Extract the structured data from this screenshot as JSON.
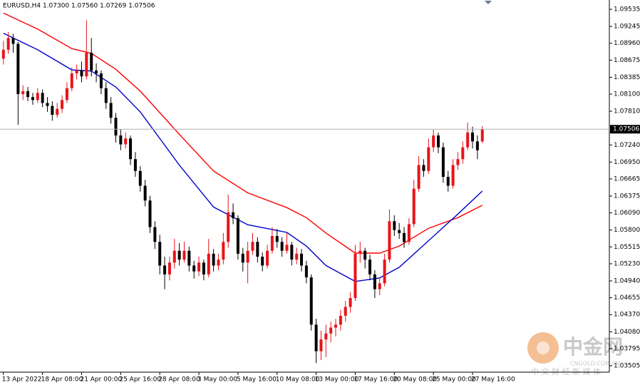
{
  "chart_data": {
    "type": "candlestick",
    "title": "EURUSD,H4  1.07300 1.07560 1.07269 1.07506",
    "up_color": "#e8141a",
    "down_color": "#000000",
    "grid": false,
    "xlim": [
      -0.7,
      124
    ],
    "ylim": [
      1.03396,
      1.09692
    ],
    "yticks": [
      1.09535,
      1.09245,
      {
        "value": 1.0896,
        "label": "1.08960"
      },
      1.08675,
      1.08385,
      {
        "value": 1.081,
        "label": "1.08100"
      },
      {
        "value": 1.0781,
        "label": "1.07810"
      },
      {
        "value": 1.0724,
        "label": "1.07240"
      },
      {
        "value": 1.0695,
        "label": "1.06950"
      },
      1.06665,
      1.06375,
      {
        "value": 1.0609,
        "label": "1.06090"
      },
      {
        "value": 1.058,
        "label": "1.05800"
      },
      1.05515,
      {
        "value": 1.0523,
        "label": "1.05230"
      },
      {
        "value": 1.0494,
        "label": "1.04940"
      },
      1.04655,
      {
        "value": 1.0437,
        "label": "1.04370"
      },
      {
        "value": 1.0408,
        "label": "1.04080"
      },
      1.03795,
      1.03505
    ],
    "xticks": [
      {
        "value": 0,
        "label": "13 Apr 2022"
      },
      {
        "value": 8,
        "label": "18 Apr 08:00"
      },
      {
        "value": 16,
        "label": "21 Apr 00:00"
      },
      {
        "value": 24,
        "label": "25 Apr 16:00"
      },
      {
        "value": 32,
        "label": "28 Apr 08:00"
      },
      {
        "value": 40,
        "label": "3 May 00:00"
      },
      {
        "value": 48,
        "label": "5 May 16:00"
      },
      {
        "value": 56,
        "label": "10 May 08:00"
      },
      {
        "value": 64,
        "label": "13 May 00:00"
      },
      {
        "value": 72,
        "label": "17 May 16:00"
      },
      {
        "value": 80,
        "label": "20 May 08:00"
      },
      {
        "value": 88,
        "label": "25 May 00:00"
      },
      {
        "value": 96,
        "label": "27 May 16:00"
      }
    ],
    "last_price": 1.07506,
    "ohlc": [
      [
        1.087,
        1.09,
        1.086,
        1.0885
      ],
      [
        1.0885,
        1.0915,
        1.0878,
        1.0905
      ],
      [
        1.0905,
        1.0912,
        1.088,
        1.0895
      ],
      [
        1.0895,
        1.0898,
        1.0758,
        1.081
      ],
      [
        1.081,
        1.0825,
        1.08,
        1.0815
      ],
      [
        1.0815,
        1.0822,
        1.0798,
        1.0805
      ],
      [
        1.0805,
        1.0812,
        1.0792,
        1.08
      ],
      [
        1.08,
        1.082,
        1.0795,
        1.0812
      ],
      [
        1.0812,
        1.0818,
        1.0788,
        1.0795
      ],
      [
        1.0795,
        1.0805,
        1.078,
        1.079
      ],
      [
        1.079,
        1.0798,
        1.0765,
        1.0775
      ],
      [
        1.0775,
        1.0795,
        1.077,
        1.0785
      ],
      [
        1.0785,
        1.0808,
        1.0778,
        1.08
      ],
      [
        1.08,
        1.083,
        1.0795,
        1.082
      ],
      [
        1.082,
        1.0855,
        1.0815,
        1.0845
      ],
      [
        1.0845,
        1.086,
        1.0835,
        1.085
      ],
      [
        1.085,
        1.0865,
        1.083,
        1.084
      ],
      [
        1.084,
        1.0935,
        1.0835,
        1.088
      ],
      [
        1.088,
        1.0905,
        1.084,
        1.085
      ],
      [
        1.085,
        1.0862,
        1.083,
        1.0845
      ],
      [
        1.0845,
        1.085,
        1.081,
        1.082
      ],
      [
        1.082,
        1.083,
        1.0785,
        1.0795
      ],
      [
        1.0795,
        1.0805,
        1.076,
        1.077
      ],
      [
        1.077,
        1.0778,
        1.0728,
        1.074
      ],
      [
        1.074,
        1.075,
        1.0715,
        1.0725
      ],
      [
        1.0725,
        1.0745,
        1.0718,
        1.0735
      ],
      [
        1.0735,
        1.074,
        1.069,
        1.07
      ],
      [
        1.07,
        1.0712,
        1.067,
        1.068
      ],
      [
        1.068,
        1.0688,
        1.0645,
        1.0655
      ],
      [
        1.0655,
        1.0665,
        1.062,
        1.063
      ],
      [
        1.063,
        1.0638,
        1.0575,
        1.0585
      ],
      [
        1.0585,
        1.0595,
        1.0548,
        1.056
      ],
      [
        1.056,
        1.0572,
        1.0505,
        1.052
      ],
      [
        1.052,
        1.0535,
        1.048,
        1.0505
      ],
      [
        1.0505,
        1.0535,
        1.0495,
        1.0525
      ],
      [
        1.0525,
        1.0565,
        1.0515,
        1.0545
      ],
      [
        1.0545,
        1.0558,
        1.052,
        1.053
      ],
      [
        1.053,
        1.056,
        1.0525,
        1.0545
      ],
      [
        1.0545,
        1.0552,
        1.051,
        1.052
      ],
      [
        1.052,
        1.0528,
        1.0498,
        1.051
      ],
      [
        1.051,
        1.0535,
        1.0502,
        1.0525
      ],
      [
        1.0525,
        1.053,
        1.0495,
        1.0505
      ],
      [
        1.0505,
        1.0565,
        1.05,
        1.054
      ],
      [
        1.054,
        1.0548,
        1.051,
        1.052
      ],
      [
        1.052,
        1.054,
        1.0512,
        1.053
      ],
      [
        1.053,
        1.0575,
        1.0522,
        1.056
      ],
      [
        1.056,
        1.064,
        1.055,
        1.061
      ],
      [
        1.061,
        1.0625,
        1.059,
        1.06
      ],
      [
        1.06,
        1.0605,
        1.053,
        1.054
      ],
      [
        1.054,
        1.055,
        1.051,
        1.0525
      ],
      [
        1.0525,
        1.056,
        1.049,
        1.0545
      ],
      [
        1.0545,
        1.0575,
        1.0538,
        1.056
      ],
      [
        1.056,
        1.0568,
        1.0525,
        1.0535
      ],
      [
        1.0535,
        1.0542,
        1.051,
        1.052
      ],
      [
        1.052,
        1.0555,
        1.0515,
        1.0545
      ],
      [
        1.0545,
        1.0585,
        1.054,
        1.057
      ],
      [
        1.057,
        1.0582,
        1.055,
        1.056
      ],
      [
        1.056,
        1.0568,
        1.0535,
        1.0545
      ],
      [
        1.0545,
        1.0575,
        1.054,
        1.0555
      ],
      [
        1.0555,
        1.056,
        1.052,
        1.053
      ],
      [
        1.053,
        1.055,
        1.0522,
        1.054
      ],
      [
        1.054,
        1.0548,
        1.051,
        1.052
      ],
      [
        1.052,
        1.0528,
        1.049,
        1.05
      ],
      [
        1.05,
        1.0505,
        1.041,
        1.042
      ],
      [
        1.042,
        1.043,
        1.0355,
        1.0375
      ],
      [
        1.0375,
        1.041,
        1.036,
        1.0395
      ],
      [
        1.0395,
        1.042,
        1.0365,
        1.0405
      ],
      [
        1.0405,
        1.0425,
        1.039,
        1.0415
      ],
      [
        1.0415,
        1.043,
        1.04,
        1.042
      ],
      [
        1.042,
        1.0445,
        1.041,
        1.0435
      ],
      [
        1.0435,
        1.046,
        1.0425,
        1.045
      ],
      [
        1.045,
        1.0475,
        1.044,
        1.0465
      ],
      [
        1.0465,
        1.0555,
        1.046,
        1.054
      ],
      [
        1.054,
        1.056,
        1.0525,
        1.0545
      ],
      [
        1.0545,
        1.055,
        1.0515,
        1.053
      ],
      [
        1.053,
        1.0538,
        1.0495,
        1.0505
      ],
      [
        1.0505,
        1.0512,
        1.0465,
        1.048
      ],
      [
        1.048,
        1.05,
        1.047,
        1.049
      ],
      [
        1.049,
        1.054,
        1.0485,
        1.053
      ],
      [
        1.053,
        1.0615,
        1.0525,
        1.0595
      ],
      [
        1.0595,
        1.0605,
        1.057,
        1.058
      ],
      [
        1.058,
        1.0592,
        1.0565,
        1.0575
      ],
      [
        1.0575,
        1.0585,
        1.055,
        1.056
      ],
      [
        1.056,
        1.06,
        1.0555,
        1.059
      ],
      [
        1.059,
        1.0665,
        1.0585,
        1.065
      ],
      [
        1.065,
        1.0705,
        1.0645,
        1.069
      ],
      [
        1.069,
        1.07,
        1.067,
        1.068
      ],
      [
        1.068,
        1.0735,
        1.0675,
        1.072
      ],
      [
        1.072,
        1.075,
        1.0712,
        1.074
      ],
      [
        1.074,
        1.0745,
        1.071,
        1.072
      ],
      [
        1.072,
        1.0728,
        1.066,
        1.067
      ],
      [
        1.067,
        1.068,
        1.0645,
        1.0655
      ],
      [
        1.0655,
        1.07,
        1.065,
        1.069
      ],
      [
        1.069,
        1.0712,
        1.0682,
        1.07
      ],
      [
        1.07,
        1.073,
        1.0692,
        1.072
      ],
      [
        1.072,
        1.0762,
        1.0715,
        1.0745
      ],
      [
        1.0745,
        1.0755,
        1.0718,
        1.073
      ],
      [
        1.073,
        1.074,
        1.07,
        1.0715
      ],
      [
        1.073,
        1.0756,
        1.07269,
        1.07506
      ]
    ],
    "moving_averages": [
      {
        "color": "#ff0000",
        "x": [
          0,
          7,
          14,
          18,
          23,
          28,
          36,
          43,
          50,
          58,
          62,
          66,
          72,
          77,
          81,
          87,
          93,
          98
        ],
        "values": [
          1.0947,
          1.092,
          1.0887,
          1.0879,
          1.0852,
          1.0815,
          1.0742,
          1.068,
          1.0643,
          1.0618,
          1.0601,
          1.0575,
          1.0541,
          1.0541,
          1.0553,
          1.0583,
          1.0601,
          1.0622
        ]
      },
      {
        "color": "#0000cc",
        "x": [
          0,
          7,
          14,
          18,
          23,
          28,
          36,
          43,
          50,
          58,
          62,
          66,
          72,
          77,
          81,
          87,
          93,
          98
        ],
        "values": [
          1.0913,
          1.0885,
          1.0851,
          1.0849,
          1.0822,
          1.078,
          1.069,
          1.0619,
          1.0589,
          1.0576,
          1.0553,
          1.052,
          1.0493,
          1.0499,
          1.0517,
          1.0562,
          1.0607,
          1.0646
        ]
      }
    ],
    "watermark": {
      "name": "中金网",
      "url": "CNGOLD.COM.CN",
      "tagline": "中 文 财 经 新 媒 体"
    }
  }
}
